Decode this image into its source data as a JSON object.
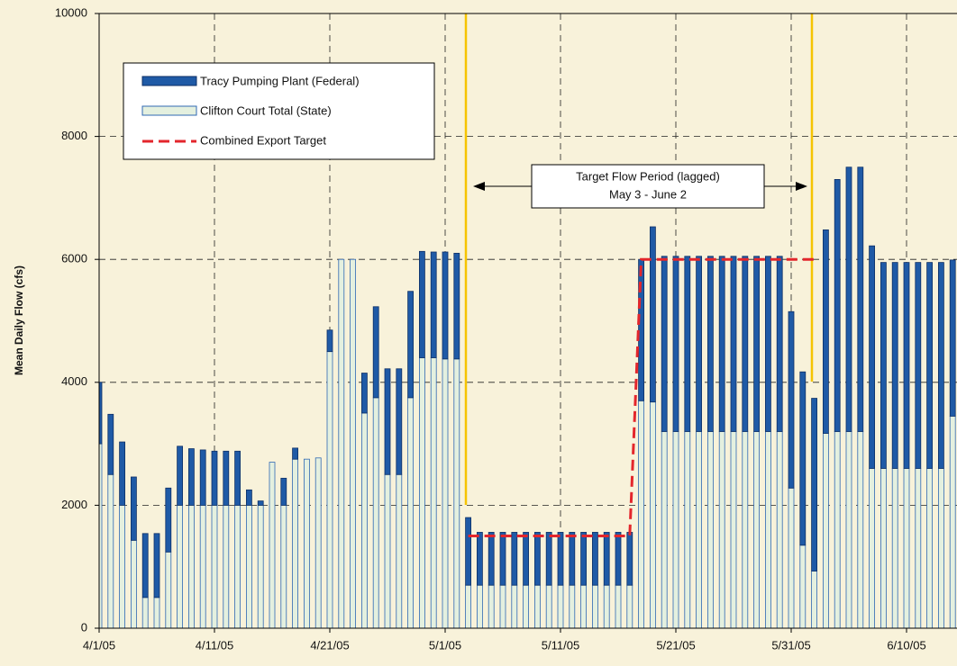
{
  "chart_data": {
    "type": "bar",
    "stacked": true,
    "ylabel": "Mean Daily Flow (cfs)",
    "categories": [
      "4/1/05",
      null,
      null,
      null,
      null,
      null,
      null,
      null,
      null,
      null,
      "4/11/05",
      null,
      null,
      null,
      null,
      null,
      null,
      null,
      null,
      null,
      "4/21/05",
      null,
      null,
      null,
      null,
      null,
      null,
      null,
      null,
      null,
      "5/1/05",
      null,
      null,
      null,
      null,
      null,
      null,
      null,
      null,
      null,
      "5/11/05",
      null,
      null,
      null,
      null,
      null,
      null,
      null,
      null,
      null,
      "5/21/05",
      null,
      null,
      null,
      null,
      null,
      null,
      null,
      null,
      null,
      "5/31/05",
      null,
      null,
      null,
      null,
      null,
      null,
      null,
      null,
      null,
      "6/10/05",
      null,
      null,
      null,
      null
    ],
    "series": [
      {
        "name": "Tracy Pumping Plant (Federal)",
        "color": "#1f5aa6",
        "values": [
          1000,
          980,
          1030,
          1030,
          1040,
          1040,
          1040,
          960,
          920,
          900,
          880,
          880,
          880,
          250,
          70,
          0,
          440,
          180,
          0,
          0,
          350,
          0,
          0,
          650,
          1480,
          1720,
          1720,
          1730,
          1730,
          1720,
          1740,
          1720,
          1100,
          860,
          860,
          860,
          860,
          860,
          860,
          860,
          860,
          860,
          860,
          860,
          860,
          860,
          860,
          2300,
          2850,
          2850,
          2850,
          2850,
          2850,
          2850,
          2850,
          2850,
          2850,
          2850,
          2850,
          2850,
          2870,
          2820,
          2810,
          3310,
          4100,
          4300,
          4300,
          3620,
          3350,
          3350,
          3350,
          3350,
          3350,
          3350,
          2540
        ]
      },
      {
        "name": "Clifton Court Total (State)",
        "color": "#e4f0df",
        "edgecolor": "#2f68b3",
        "values": [
          3000,
          2500,
          2000,
          1430,
          500,
          500,
          1240,
          2000,
          2000,
          2000,
          2000,
          2000,
          2000,
          2000,
          2000,
          2700,
          2000,
          2750,
          2750,
          2770,
          4500,
          6000,
          6000,
          3500,
          3750,
          2500,
          2500,
          3750,
          4400,
          4400,
          4380,
          4380,
          700,
          700,
          700,
          700,
          700,
          700,
          700,
          700,
          700,
          700,
          700,
          700,
          700,
          700,
          700,
          3700,
          3680,
          3200,
          3200,
          3200,
          3200,
          3200,
          3200,
          3200,
          3200,
          3200,
          3200,
          3200,
          2280,
          1350,
          930,
          3170,
          3200,
          3200,
          3200,
          2600,
          2600,
          2600,
          2600,
          2600,
          2600,
          2600,
          3450
        ]
      },
      {
        "name": "Combined Export Target",
        "type": "line",
        "color": "#e3262c",
        "values": [
          null,
          null,
          null,
          null,
          null,
          null,
          null,
          null,
          null,
          null,
          null,
          null,
          null,
          null,
          null,
          null,
          null,
          null,
          null,
          null,
          null,
          null,
          null,
          null,
          null,
          null,
          null,
          null,
          null,
          null,
          null,
          null,
          1500,
          1500,
          1500,
          1500,
          1500,
          1500,
          1500,
          1500,
          1500,
          1500,
          1500,
          1500,
          1500,
          1500,
          1500,
          6000,
          6000,
          6000,
          6000,
          6000,
          6000,
          6000,
          6000,
          6000,
          6000,
          6000,
          6000,
          6000,
          6000,
          6000,
          6000,
          null,
          null,
          null,
          null,
          null,
          null,
          null,
          null,
          null,
          null,
          null,
          null
        ]
      }
    ],
    "annotations": [
      "Target Flow Period (lagged)",
      "May 3 - June 2"
    ],
    "ylim": [
      0,
      10000
    ],
    "yticks": [
      0,
      2000,
      4000,
      6000,
      8000,
      10000
    ],
    "grid": true
  }
}
